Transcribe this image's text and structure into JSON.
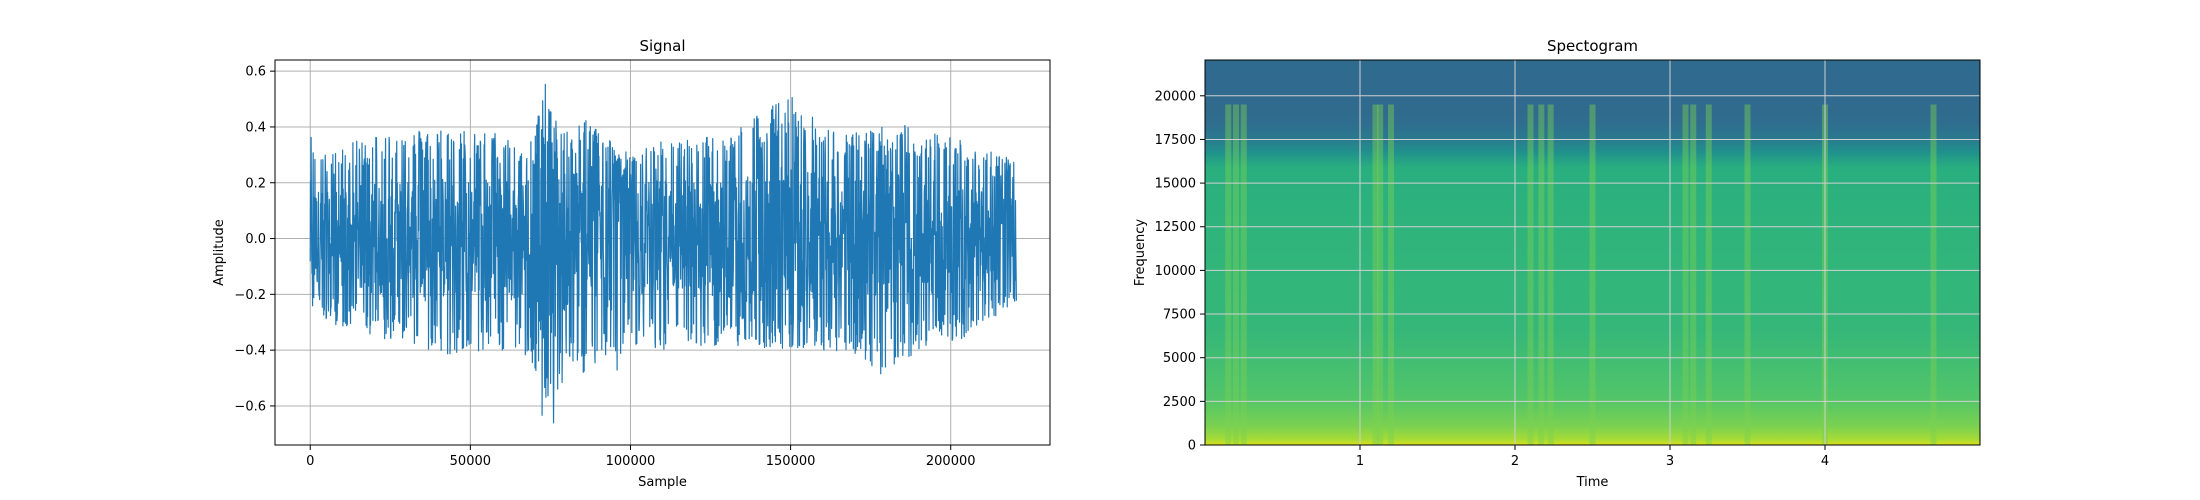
{
  "chart_data": [
    {
      "type": "line",
      "title": "Signal",
      "xlabel": "Sample",
      "ylabel": "Amplitude",
      "xlim": [
        -11000,
        231000
      ],
      "ylim": [
        -0.74,
        0.64
      ],
      "x_ticks": [
        0,
        50000,
        100000,
        150000,
        200000
      ],
      "x_tick_labels": [
        "0",
        "50000",
        "100000",
        "150000",
        "200000"
      ],
      "y_ticks": [
        -0.6,
        -0.4,
        -0.2,
        0.0,
        0.2,
        0.4,
        0.6
      ],
      "y_tick_labels": [
        "−0.6",
        "−0.4",
        "−0.2",
        "0.0",
        "0.2",
        "0.4",
        "0.6"
      ],
      "grid": true,
      "line_color": "#1f77b4",
      "series": [
        {
          "x_start": 0,
          "x_end": 220500,
          "envelope_x": [
            0,
            5000,
            20000,
            40000,
            60000,
            65000,
            70000,
            73000,
            76000,
            80000,
            85000,
            90000,
            95000,
            100000,
            110000,
            130000,
            150000,
            160000,
            170000,
            180000,
            190000,
            200000,
            210000,
            220500
          ],
          "upper": [
            0.38,
            0.3,
            0.38,
            0.4,
            0.38,
            0.35,
            0.38,
            0.57,
            0.45,
            0.38,
            0.45,
            0.4,
            0.35,
            0.3,
            0.35,
            0.38,
            0.52,
            0.4,
            0.38,
            0.42,
            0.4,
            0.37,
            0.34,
            0.27
          ],
          "lower": [
            -0.25,
            -0.3,
            -0.35,
            -0.42,
            -0.4,
            -0.4,
            -0.48,
            -0.68,
            -0.67,
            -0.45,
            -0.5,
            -0.45,
            -0.5,
            -0.38,
            -0.4,
            -0.38,
            -0.4,
            -0.4,
            -0.42,
            -0.5,
            -0.4,
            -0.38,
            -0.32,
            -0.26
          ]
        }
      ]
    },
    {
      "type": "heatmap",
      "title": "Spectogram",
      "xlabel": "Time",
      "ylabel": "Frequency",
      "xlim": [
        0,
        5
      ],
      "ylim": [
        0,
        22050
      ],
      "x_ticks": [
        1,
        2,
        3,
        4
      ],
      "x_tick_labels": [
        "1",
        "2",
        "3",
        "4"
      ],
      "y_ticks": [
        0,
        2500,
        5000,
        7500,
        10000,
        12500,
        15000,
        17500,
        20000
      ],
      "y_tick_labels": [
        "0",
        "2500",
        "5000",
        "7500",
        "10000",
        "12500",
        "15000",
        "17500",
        "20000"
      ],
      "grid": true,
      "colormap": "viridis",
      "bright_times": [
        0.15,
        0.2,
        0.25,
        1.1,
        1.13,
        1.2,
        2.1,
        2.17,
        2.23,
        2.5,
        3.1,
        3.15,
        3.25,
        3.5,
        4.0,
        4.7
      ]
    }
  ]
}
